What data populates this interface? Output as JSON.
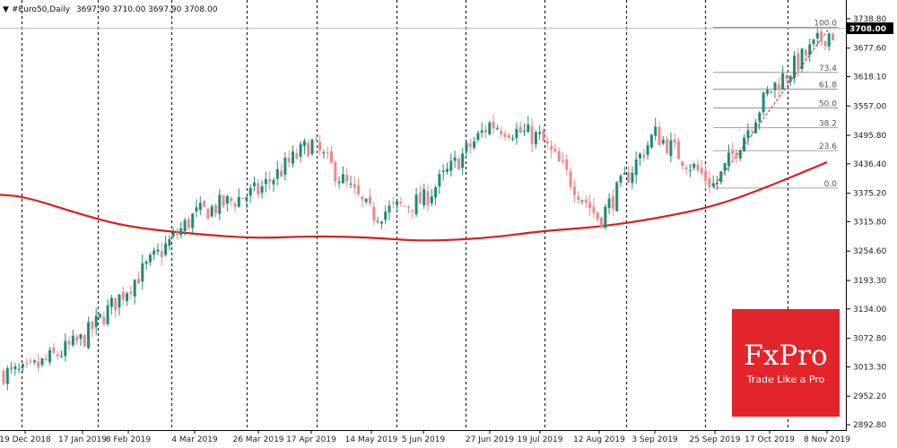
{
  "header": {
    "symbol": "#Euro50,Daily",
    "ohlc": "3697.90 3710.00 3697.90 3708.00"
  },
  "current_price_label": "3708.00",
  "logo": {
    "title": "FxPro",
    "tagline": "Trade Like a Pro"
  },
  "colors": {
    "bull": "#1c8c7a",
    "bear": "#ee8a8a",
    "ma": "#dd1c1c",
    "grid": "#222222",
    "logo_bg": "#e3242b"
  },
  "chart_data": {
    "type": "candlestick",
    "title": "",
    "xlabel": "",
    "ylabel": "",
    "ylim": [
      2892.8,
      3748
    ],
    "grid": "vertical-dashed",
    "y_ticks": [
      "3738.80",
      "3677.60",
      "3618.10",
      "3557.00",
      "3495.80",
      "3436.40",
      "3375.20",
      "3315.80",
      "3254.60",
      "3193.30",
      "3134.00",
      "3072.80",
      "3013.30",
      "2952.20",
      "2892.80"
    ],
    "x_ticks": [
      "19 Dec 2018",
      "17 Jan 2019",
      "8 Feb 2019",
      "4 Mar 2019",
      "26 Mar 2019",
      "17 Apr 2019",
      "14 May 2019",
      "5 Jun 2019",
      "27 Jun 2019",
      "19 Jul 2019",
      "12 Aug 2019",
      "3 Sep 2019",
      "25 Sep 2019",
      "17 Oct 2019",
      "8 Nov 2019"
    ],
    "close_anchors": [
      [
        "19 Dec 2018",
        3000
      ],
      [
        "17 Jan 2019",
        3070
      ],
      [
        "8 Feb 2019",
        3180
      ],
      [
        "4 Mar 2019",
        3330
      ],
      [
        "26 Mar 2019",
        3380
      ],
      [
        "17 Apr 2019",
        3480
      ],
      [
        "14 May 2019",
        3330
      ],
      [
        "5 Jun 2019",
        3360
      ],
      [
        "27 Jun 2019",
        3520
      ],
      [
        "19 Jul 2019",
        3490
      ],
      [
        "12 Aug 2019",
        3320
      ],
      [
        "3 Sep 2019",
        3500
      ],
      [
        "25 Sep 2019",
        3390
      ],
      [
        "17 Oct 2019",
        3590
      ],
      [
        "8 Nov 2019",
        3708
      ]
    ],
    "moving_average": {
      "name": "",
      "points": [
        [
          "19 Dec 2018",
          3368
        ],
        [
          "17 Jan 2019",
          3330
        ],
        [
          "8 Feb 2019",
          3305
        ],
        [
          "4 Mar 2019",
          3290
        ],
        [
          "26 Mar 2019",
          3281
        ],
        [
          "17 Apr 2019",
          3286
        ],
        [
          "14 May 2019",
          3283
        ],
        [
          "5 Jun 2019",
          3275
        ],
        [
          "27 Jun 2019",
          3282
        ],
        [
          "19 Jul 2019",
          3296
        ],
        [
          "12 Aug 2019",
          3305
        ],
        [
          "3 Sep 2019",
          3322
        ],
        [
          "25 Sep 2019",
          3348
        ],
        [
          "17 Oct 2019",
          3390
        ],
        [
          "8 Nov 2019",
          3440
        ]
      ]
    },
    "fibonacci": {
      "levels": [
        {
          "label": "100.0",
          "price": 3721
        },
        {
          "label": "73.4",
          "price": 3627
        },
        {
          "label": "61.8",
          "price": 3592
        },
        {
          "label": "50.0",
          "price": 3553
        },
        {
          "label": "38.2",
          "price": 3512
        },
        {
          "label": "23.6",
          "price": 3464
        },
        {
          "label": "0.0",
          "price": 3386
        }
      ],
      "from_date": "25 Sep 2019",
      "to_date": "8 Nov 2019"
    }
  }
}
